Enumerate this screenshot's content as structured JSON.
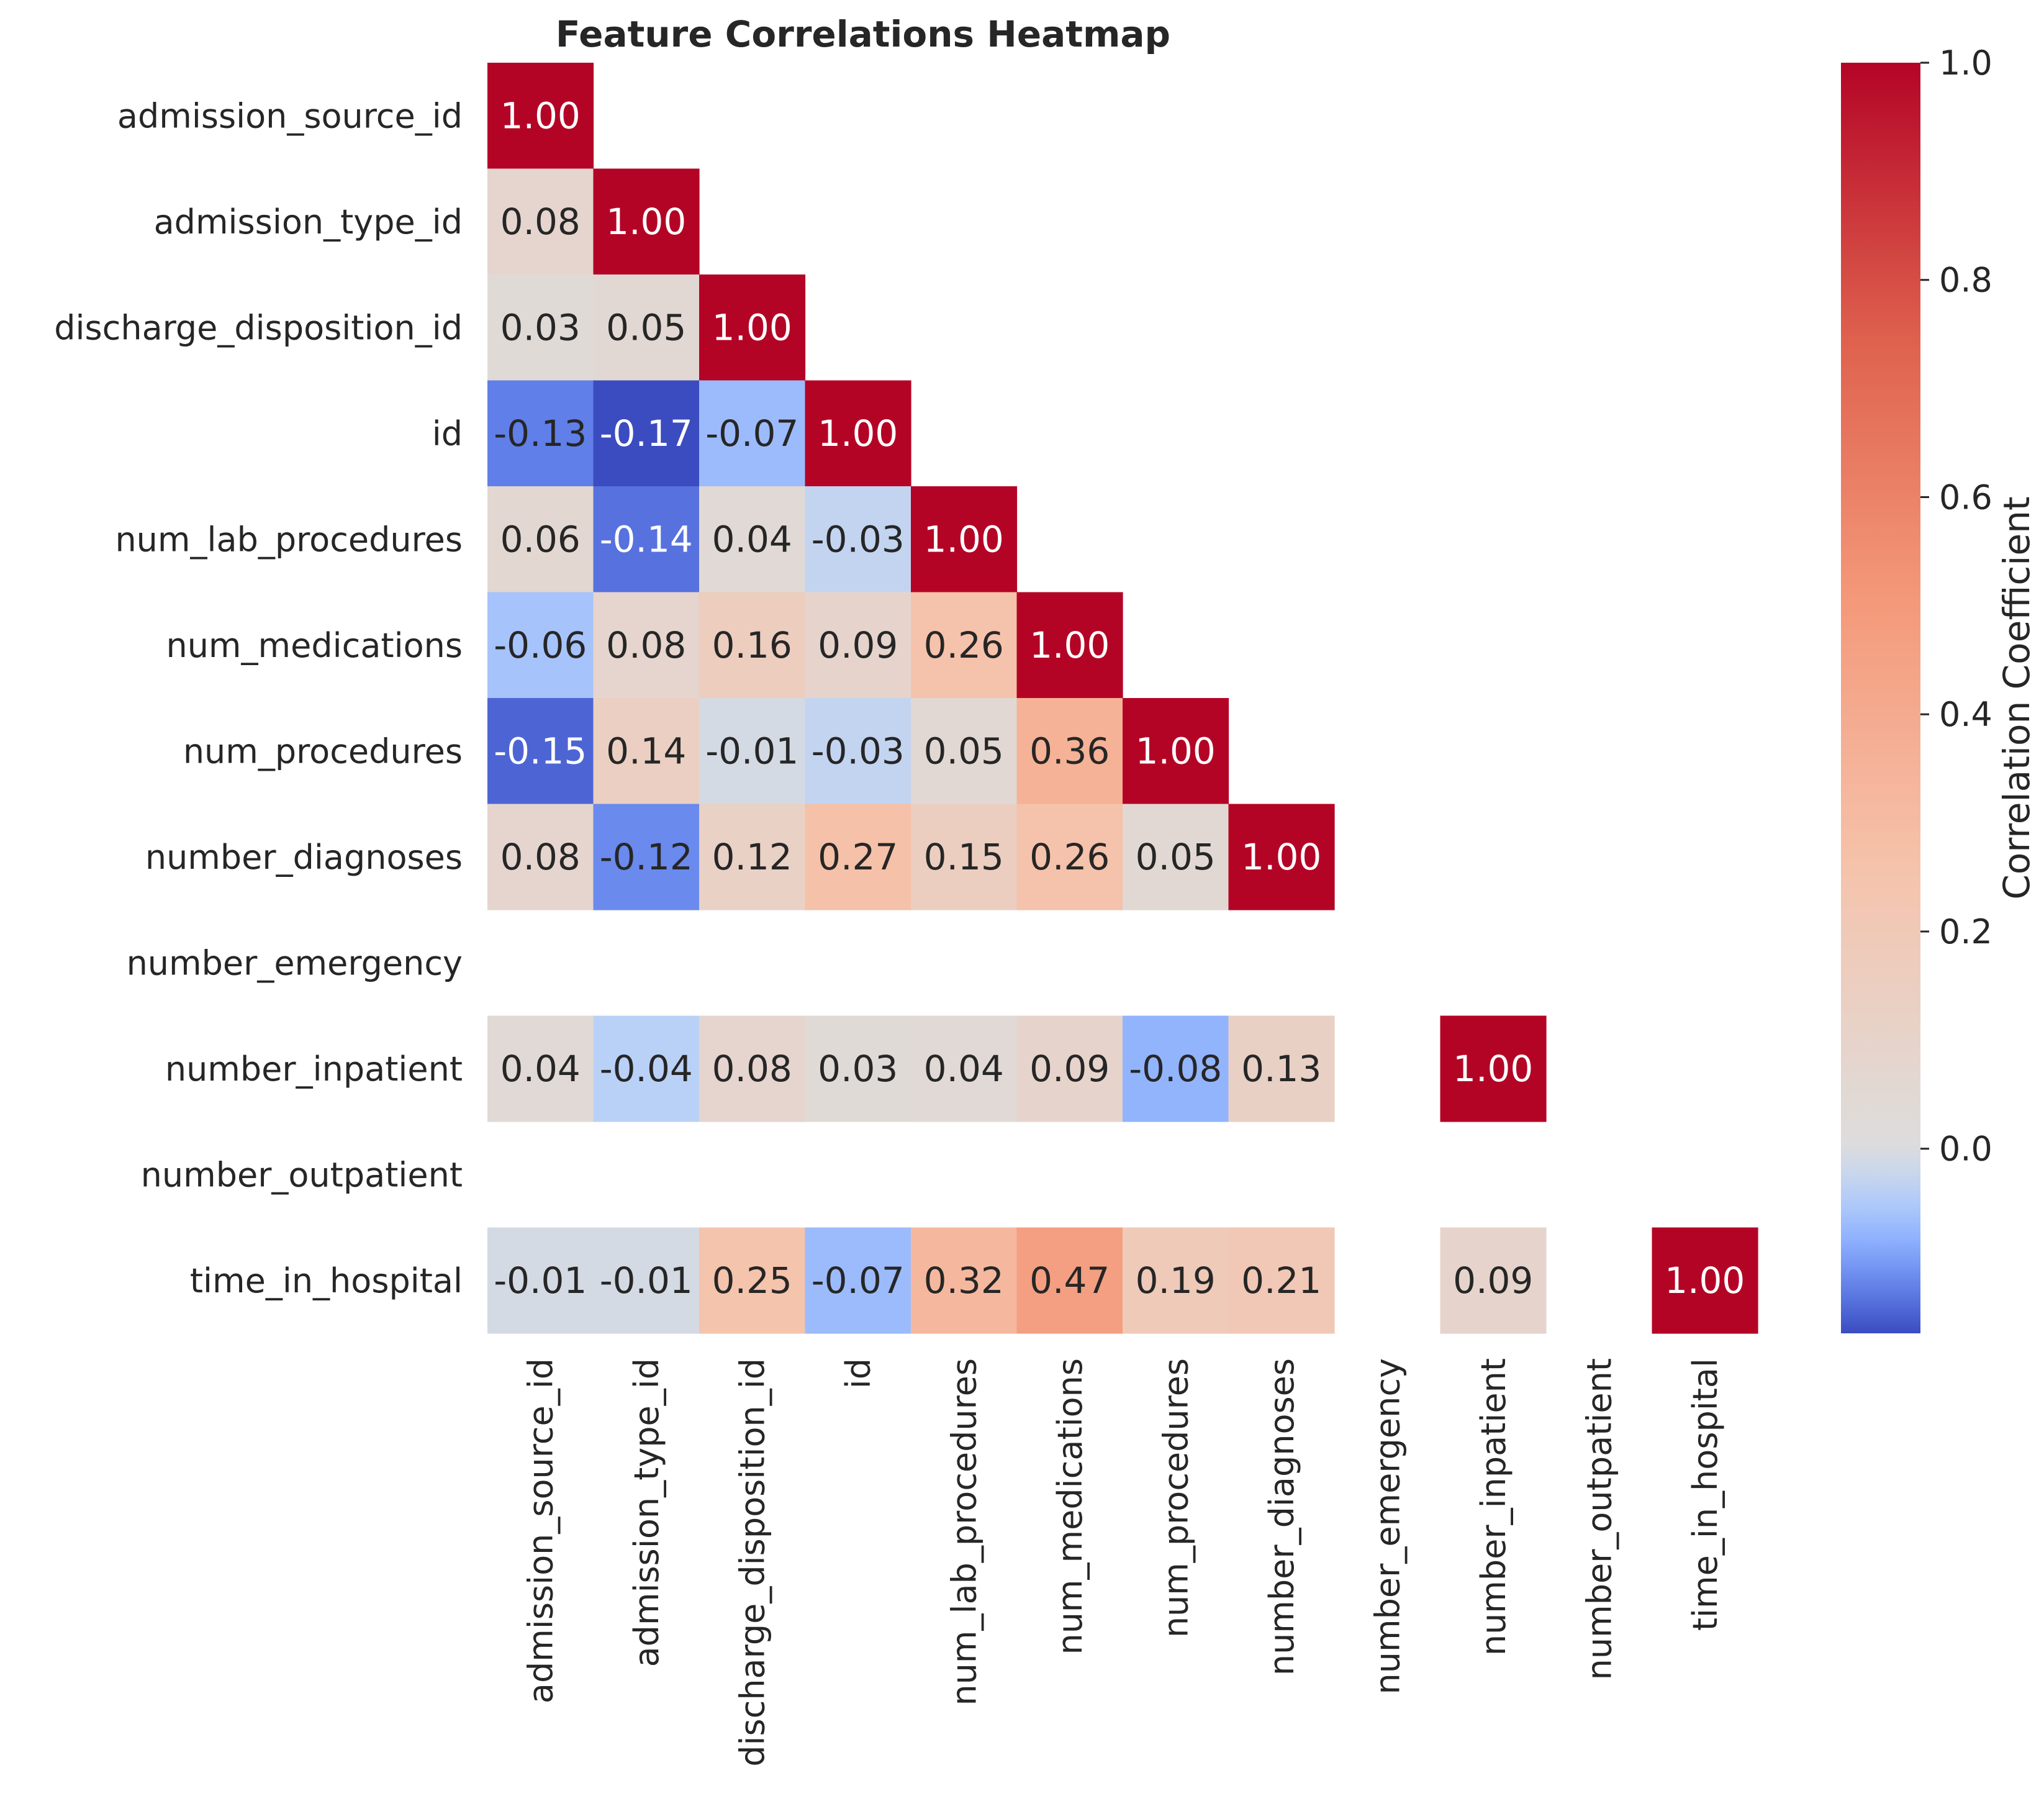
{
  "chart_data": {
    "type": "heatmap",
    "title": "Feature Correlations Heatmap",
    "rows": [
      "admission_source_id",
      "admission_type_id",
      "discharge_disposition_id",
      "id",
      "num_lab_procedures",
      "num_medications",
      "num_procedures",
      "number_diagnoses",
      "number_emergency",
      "number_inpatient",
      "number_outpatient",
      "time_in_hospital"
    ],
    "columns": [
      "admission_source_id",
      "admission_type_id",
      "discharge_disposition_id",
      "id",
      "num_lab_procedures",
      "num_medications",
      "num_procedures",
      "number_diagnoses",
      "number_emergency",
      "number_inpatient",
      "number_outpatient",
      "time_in_hospital"
    ],
    "values": [
      [
        1.0,
        null,
        null,
        null,
        null,
        null,
        null,
        null,
        null,
        null,
        null,
        null
      ],
      [
        0.08,
        1.0,
        null,
        null,
        null,
        null,
        null,
        null,
        null,
        null,
        null,
        null
      ],
      [
        0.03,
        0.05,
        1.0,
        null,
        null,
        null,
        null,
        null,
        null,
        null,
        null,
        null
      ],
      [
        -0.13,
        -0.17,
        -0.07,
        1.0,
        null,
        null,
        null,
        null,
        null,
        null,
        null,
        null
      ],
      [
        0.06,
        -0.14,
        0.04,
        -0.03,
        1.0,
        null,
        null,
        null,
        null,
        null,
        null,
        null
      ],
      [
        -0.06,
        0.08,
        0.16,
        0.09,
        0.26,
        1.0,
        null,
        null,
        null,
        null,
        null,
        null
      ],
      [
        -0.15,
        0.14,
        -0.01,
        -0.03,
        0.05,
        0.36,
        1.0,
        null,
        null,
        null,
        null,
        null
      ],
      [
        0.08,
        -0.12,
        0.12,
        0.27,
        0.15,
        0.26,
        0.05,
        1.0,
        null,
        null,
        null,
        null
      ],
      [
        null,
        null,
        null,
        null,
        null,
        null,
        null,
        null,
        null,
        null,
        null,
        null
      ],
      [
        0.04,
        -0.04,
        0.08,
        0.03,
        0.04,
        0.09,
        -0.08,
        0.13,
        null,
        1.0,
        null,
        null
      ],
      [
        null,
        null,
        null,
        null,
        null,
        null,
        null,
        null,
        null,
        null,
        null,
        null
      ],
      [
        -0.01,
        -0.01,
        0.25,
        -0.07,
        0.32,
        0.47,
        0.19,
        0.21,
        null,
        0.09,
        null,
        1.0
      ]
    ],
    "colormap": "coolwarm",
    "color_range": [
      -0.17,
      1.0
    ],
    "colorbar": {
      "label": "Correlation Coefficient",
      "ticks": [
        0.0,
        0.2,
        0.4,
        0.6,
        0.8,
        1.0
      ],
      "tick_labels": [
        "0.0",
        "0.2",
        "0.4",
        "0.6",
        "0.8",
        "1.0"
      ]
    },
    "annotation_format": "0.00",
    "grid": false
  }
}
